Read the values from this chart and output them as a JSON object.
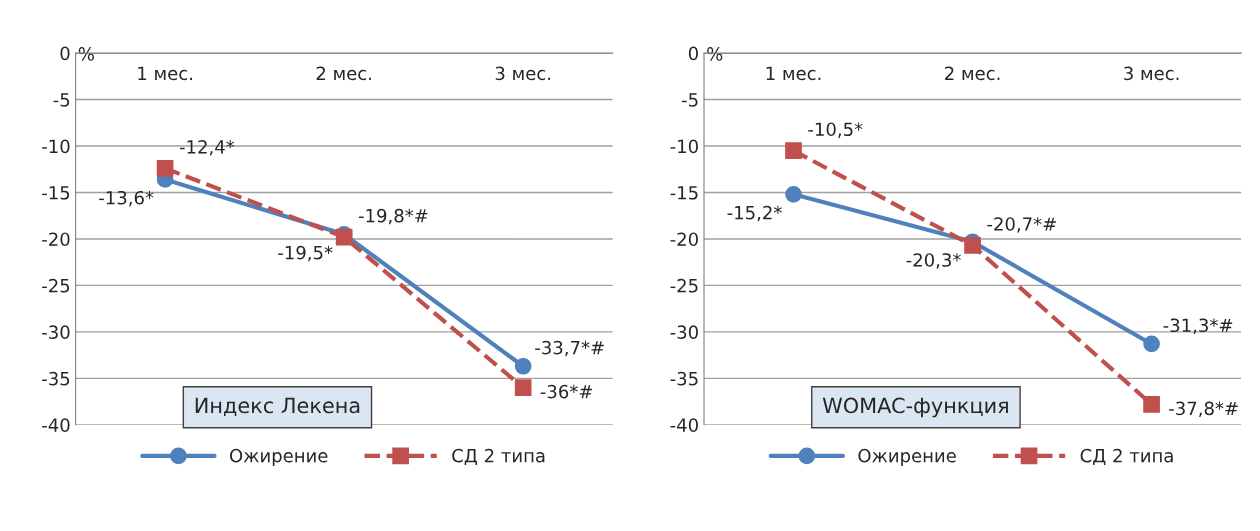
{
  "chart_data": [
    {
      "type": "line",
      "title": "Индекс Лекена",
      "ylabel": "%",
      "categories": [
        "1 мес.",
        "2 мес.",
        "3 мес."
      ],
      "ylim": [
        -40,
        0
      ],
      "yticks": [
        0,
        -5,
        -10,
        -15,
        -20,
        -25,
        -30,
        -35,
        -40
      ],
      "grid": "y",
      "legend": "bottom",
      "series": [
        {
          "name": "Ожирение",
          "color": "#4f81bd",
          "marker": "circle",
          "line_style": "solid",
          "values": [
            -13.6,
            -19.5,
            -33.7
          ],
          "value_labels": [
            "-13,6*",
            "-19,5*",
            "-33,7*#"
          ]
        },
        {
          "name": "СД 2 типа",
          "color": "#c0504d",
          "marker": "square",
          "line_style": "dashed",
          "values": [
            -12.4,
            -19.8,
            -36
          ],
          "value_labels": [
            "-12,4*",
            "-19,8*#",
            "-36*#"
          ]
        }
      ]
    },
    {
      "type": "line",
      "title": "WOMAC-функция",
      "ylabel": "%",
      "categories": [
        "1 мес.",
        "2 мес.",
        "3 мес."
      ],
      "ylim": [
        -40,
        0
      ],
      "yticks": [
        0,
        -5,
        -10,
        -15,
        -20,
        -25,
        -30,
        -35,
        -40
      ],
      "grid": "y",
      "legend": "bottom",
      "series": [
        {
          "name": "Ожирение",
          "color": "#4f81bd",
          "marker": "circle",
          "line_style": "solid",
          "values": [
            -15.2,
            -20.3,
            -31.3
          ],
          "value_labels": [
            "-15,2*",
            "-20,3*",
            "-31,3*#"
          ]
        },
        {
          "name": "СД 2 типа",
          "color": "#c0504d",
          "marker": "square",
          "line_style": "dashed",
          "values": [
            -10.5,
            -20.7,
            -37.8
          ],
          "value_labels": [
            "-10,5*",
            "-20,7*#",
            "-37,8*#"
          ]
        }
      ]
    }
  ]
}
